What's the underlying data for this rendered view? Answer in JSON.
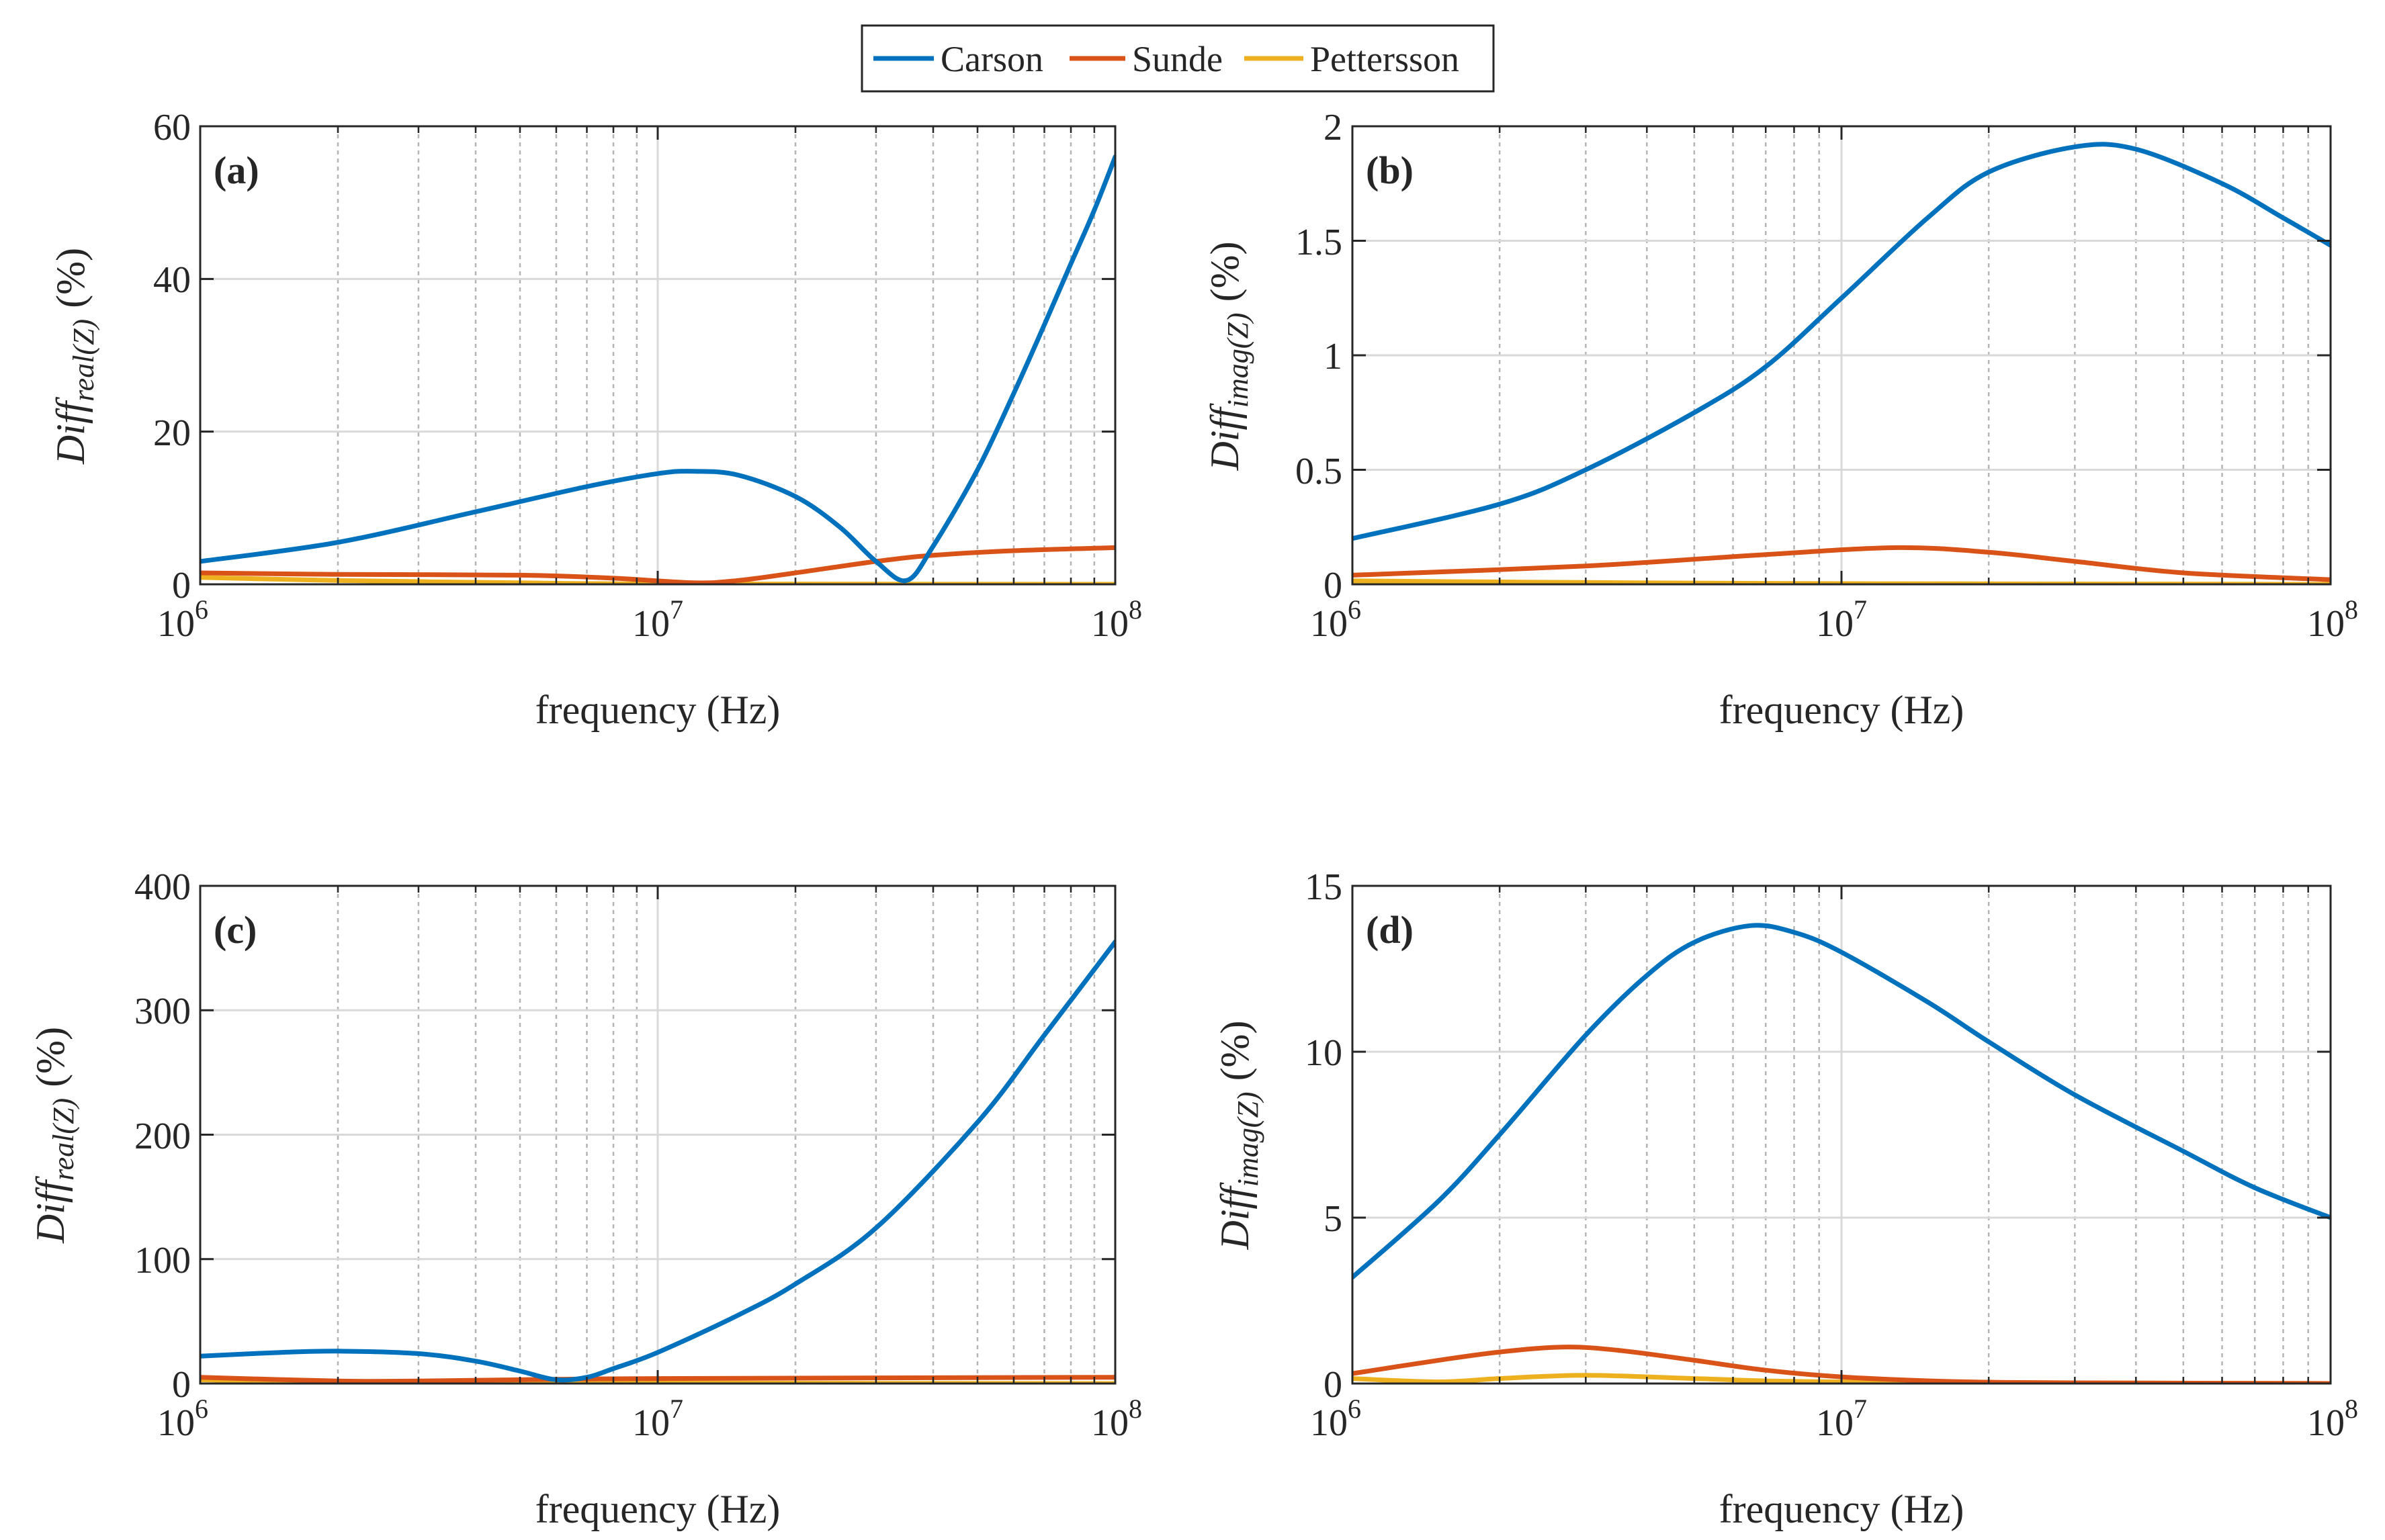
{
  "legend": {
    "entries": [
      {
        "name": "Carson",
        "color": "#0072BD"
      },
      {
        "name": "Sunde",
        "color": "#D95319"
      },
      {
        "name": "Pettersson",
        "color": "#EDB120"
      }
    ]
  },
  "chart_data": [
    {
      "type": "line",
      "panel_label": "(a)",
      "title": "",
      "xlabel": "frequency (Hz)",
      "ylabel": "Diff",
      "ylabel_sub": "real(Z)",
      "ylabel_unit": "(%)",
      "xscale": "log",
      "xlim": [
        1000000,
        100000000
      ],
      "x_ticks": [
        1000000,
        10000000,
        100000000
      ],
      "x_tick_labels": [
        {
          "base": "10",
          "exp": "6"
        },
        {
          "base": "10",
          "exp": "7"
        },
        {
          "base": "10",
          "exp": "8"
        }
      ],
      "ylim": [
        0,
        60
      ],
      "y_ticks": [
        0,
        20,
        40,
        60
      ],
      "y_tick_labels": [
        "0",
        "20",
        "40",
        "60"
      ],
      "grid": true,
      "series": [
        {
          "name": "Carson",
          "color": "#0072BD",
          "x": [
            1000000,
            2000000,
            4000000,
            7000000,
            10000000,
            12000000,
            15000000,
            20000000,
            25000000,
            30000000,
            35000000,
            40000000,
            50000000,
            60000000,
            70000000,
            80000000,
            90000000,
            100000000
          ],
          "y": [
            3,
            5.5,
            9.5,
            12.8,
            14.5,
            14.8,
            14.3,
            11.5,
            7.5,
            3,
            0.5,
            5,
            15,
            25,
            34,
            42,
            49,
            56
          ]
        },
        {
          "name": "Sunde",
          "color": "#D95319",
          "x": [
            1000000,
            2000000,
            5000000,
            8000000,
            12000000,
            15000000,
            20000000,
            30000000,
            40000000,
            60000000,
            100000000
          ],
          "y": [
            1.5,
            1.3,
            1.2,
            0.8,
            0.2,
            0.5,
            1.5,
            3.0,
            3.8,
            4.4,
            4.8
          ]
        },
        {
          "name": "Pettersson",
          "color": "#EDB120",
          "x": [
            1000000,
            2000000,
            5000000,
            10000000,
            100000000
          ],
          "y": [
            0.9,
            0.5,
            0.2,
            0.05,
            0
          ]
        }
      ]
    },
    {
      "type": "line",
      "panel_label": "(b)",
      "title": "",
      "xlabel": "frequency (Hz)",
      "ylabel": "Diff",
      "ylabel_sub": "imag(Z)",
      "ylabel_unit": "(%)",
      "xscale": "log",
      "xlim": [
        1000000,
        100000000
      ],
      "x_ticks": [
        1000000,
        10000000,
        100000000
      ],
      "x_tick_labels": [
        {
          "base": "10",
          "exp": "6"
        },
        {
          "base": "10",
          "exp": "7"
        },
        {
          "base": "10",
          "exp": "8"
        }
      ],
      "ylim": [
        0,
        2
      ],
      "y_ticks": [
        0,
        0.5,
        1,
        1.5,
        2
      ],
      "y_tick_labels": [
        "0",
        "0.5",
        "1",
        "1.5",
        "2"
      ],
      "grid": true,
      "series": [
        {
          "name": "Carson",
          "color": "#0072BD",
          "x": [
            1000000,
            2000000,
            3000000,
            5000000,
            7000000,
            10000000,
            15000000,
            20000000,
            30000000,
            40000000,
            60000000,
            80000000,
            100000000
          ],
          "y": [
            0.2,
            0.35,
            0.5,
            0.75,
            0.95,
            1.25,
            1.6,
            1.8,
            1.91,
            1.9,
            1.75,
            1.6,
            1.48
          ]
        },
        {
          "name": "Sunde",
          "color": "#D95319",
          "x": [
            1000000,
            3000000,
            7000000,
            13000000,
            20000000,
            30000000,
            50000000,
            100000000
          ],
          "y": [
            0.04,
            0.08,
            0.13,
            0.16,
            0.14,
            0.1,
            0.05,
            0.02
          ]
        },
        {
          "name": "Pettersson",
          "color": "#EDB120",
          "x": [
            1000000,
            3000000,
            10000000,
            100000000
          ],
          "y": [
            0.015,
            0.008,
            0.003,
            0
          ]
        }
      ]
    },
    {
      "type": "line",
      "panel_label": "(c)",
      "title": "",
      "xlabel": "frequency (Hz)",
      "ylabel": "Diff",
      "ylabel_sub": "real(Z)",
      "ylabel_unit": "(%)",
      "xscale": "log",
      "xlim": [
        1000000,
        100000000
      ],
      "x_ticks": [
        1000000,
        10000000,
        100000000
      ],
      "x_tick_labels": [
        {
          "base": "10",
          "exp": "6"
        },
        {
          "base": "10",
          "exp": "7"
        },
        {
          "base": "10",
          "exp": "8"
        }
      ],
      "ylim": [
        0,
        400
      ],
      "y_ticks": [
        0,
        100,
        200,
        300,
        400
      ],
      "y_tick_labels": [
        "0",
        "100",
        "200",
        "300",
        "400"
      ],
      "grid": true,
      "series": [
        {
          "name": "Carson",
          "color": "#0072BD",
          "x": [
            1000000,
            1500000,
            2000000,
            3000000,
            4000000,
            5000000,
            6000000,
            7000000,
            8000000,
            10000000,
            15000000,
            20000000,
            30000000,
            50000000,
            70000000,
            100000000
          ],
          "y": [
            22,
            25,
            26,
            24,
            18,
            10,
            3,
            5,
            12,
            25,
            55,
            80,
            125,
            210,
            280,
            355
          ]
        },
        {
          "name": "Sunde",
          "color": "#D95319",
          "x": [
            1000000,
            2000000,
            3000000,
            5000000,
            10000000,
            100000000
          ],
          "y": [
            5,
            2,
            2,
            3,
            4,
            5
          ]
        },
        {
          "name": "Pettersson",
          "color": "#EDB120",
          "x": [
            1000000,
            2000000,
            5000000,
            10000000,
            100000000
          ],
          "y": [
            3,
            1,
            0.5,
            0.3,
            0
          ]
        }
      ]
    },
    {
      "type": "line",
      "panel_label": "(d)",
      "title": "",
      "xlabel": "frequency (Hz)",
      "ylabel": "Diff",
      "ylabel_sub": "imag(Z)",
      "ylabel_unit": "(%)",
      "xscale": "log",
      "xlim": [
        1000000,
        100000000
      ],
      "x_ticks": [
        1000000,
        10000000,
        100000000
      ],
      "x_tick_labels": [
        {
          "base": "10",
          "exp": "6"
        },
        {
          "base": "10",
          "exp": "7"
        },
        {
          "base": "10",
          "exp": "8"
        }
      ],
      "ylim": [
        0,
        15
      ],
      "y_ticks": [
        0,
        5,
        10,
        15
      ],
      "y_tick_labels": [
        "0",
        "5",
        "10",
        "15"
      ],
      "grid": true,
      "series": [
        {
          "name": "Carson",
          "color": "#0072BD",
          "x": [
            1000000,
            1500000,
            2000000,
            3000000,
            4000000,
            5000000,
            6500000,
            8000000,
            10000000,
            15000000,
            20000000,
            30000000,
            50000000,
            70000000,
            100000000
          ],
          "y": [
            3.2,
            5.5,
            7.5,
            10.5,
            12.3,
            13.3,
            13.8,
            13.6,
            13.0,
            11.5,
            10.3,
            8.7,
            7.0,
            5.9,
            5.0
          ]
        },
        {
          "name": "Sunde",
          "color": "#D95319",
          "x": [
            1000000,
            1500000,
            2000000,
            2700000,
            3500000,
            5000000,
            7000000,
            10000000,
            15000000,
            20000000,
            30000000,
            100000000
          ],
          "y": [
            0.3,
            0.7,
            0.95,
            1.1,
            1.0,
            0.7,
            0.4,
            0.2,
            0.08,
            0.04,
            0.02,
            0
          ]
        },
        {
          "name": "Pettersson",
          "color": "#EDB120",
          "x": [
            1000000,
            1500000,
            2000000,
            3000000,
            5000000,
            10000000,
            100000000
          ],
          "y": [
            0.15,
            0.05,
            0.15,
            0.25,
            0.15,
            0.05,
            0
          ]
        }
      ]
    }
  ]
}
